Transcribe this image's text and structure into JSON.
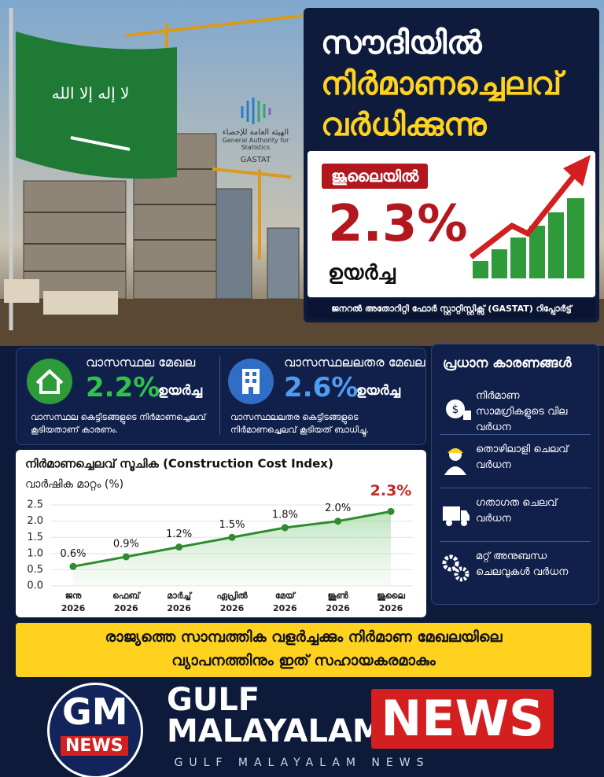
{
  "logo": {
    "arabic": "الهيئة العامة للإحصاء",
    "english": "General Authority for Statistics",
    "short": "GASTAT"
  },
  "header": {
    "title_lines": [
      "സൗദിയിൽ",
      "നിർമാണച്ചെലവ്",
      "വർധിക്കുന്നു"
    ],
    "badge": "ജൂലൈയിൽ",
    "headline_value": "2.3%",
    "headline_caption": "ഉയർച്ച",
    "source": "ജനറൽ അതോറിറ്റി ഫോർ സ്റ്റാറ്റിസ്റ്റിക്സ് (GASTAT) റിപ്പോർട്ട്"
  },
  "sectors": [
    {
      "name": "വാസസ്ഥല മേഖല",
      "value": "2.2%",
      "caption": "ഉയർച്ച",
      "note": "വാസസ്ഥല കെട്ടിടങ്ങളുടെ നിർമാണച്ചെലവ് കൂടിയതാണ് കാരണം."
    },
    {
      "name": "വാസസ്ഥലലതര മേഖല",
      "value": "2.6%",
      "caption": "ഉയർച്ച",
      "note": "വാസസ്ഥലലതര കെട്ടിടങ്ങളുടെ നിർമാണച്ചെലവ് കൂടിയത് ബാധിച്ചു."
    }
  ],
  "reasons": {
    "title": "പ്രധാന കാരണങ്ങൾ",
    "items": [
      "നിർമാണ സാമഗ്രികളുടെ വില വർധന",
      "തൊഴിലാളി ചെലവ് വർധന",
      "ഗതാഗത ചെലവ് വർധന",
      "മറ്റ് അനുബന്ധ ചെലവുകൾ വർധന"
    ]
  },
  "chart_data": {
    "type": "line",
    "title": "നിർമാണച്ചെലവ് സൂചിക (Construction Cost Index)",
    "subtitle": "വാർഷിക മാറ്റം (%)",
    "categories": [
      [
        "ജനു",
        "2026"
      ],
      [
        "ഫെബ്",
        "2026"
      ],
      [
        "മാർച്ച്",
        "2026"
      ],
      [
        "ഏപ്രിൽ",
        "2026"
      ],
      [
        "മേയ്",
        "2026"
      ],
      [
        "ജൂൺ",
        "2026"
      ],
      [
        "ജൂലൈ",
        "2026"
      ]
    ],
    "values": [
      0.6,
      0.9,
      1.2,
      1.5,
      1.8,
      2.0,
      2.3
    ],
    "value_labels": [
      "0.6%",
      "0.9%",
      "1.2%",
      "1.5%",
      "1.8%",
      "2.0%",
      "2.3%"
    ],
    "color": "#2e8b2e",
    "ylim": [
      0,
      2.6
    ],
    "yticks": [
      {
        "value": 0,
        "label": "0.0"
      },
      0.5,
      {
        "value": 1,
        "label": "1.0"
      },
      1.5,
      {
        "value": 2,
        "label": "2.0"
      },
      2.5
    ],
    "grid": true
  },
  "banner": [
    "രാജ്യത്തെ സാമ്പത്തിക വളർച്ചക്കും നിർമാണ മേഖലയിലെ",
    "വ്യാപനത്തിനും ഇത് സഹായകരമാകും"
  ],
  "footer": {
    "logo_top": "GM",
    "logo_bottom": "NEWS",
    "brand_1": "GULF",
    "brand_2": "MALAYALAM",
    "brand_news": "NEWS",
    "tagline": "GULF MALAYALAM NEWS"
  }
}
